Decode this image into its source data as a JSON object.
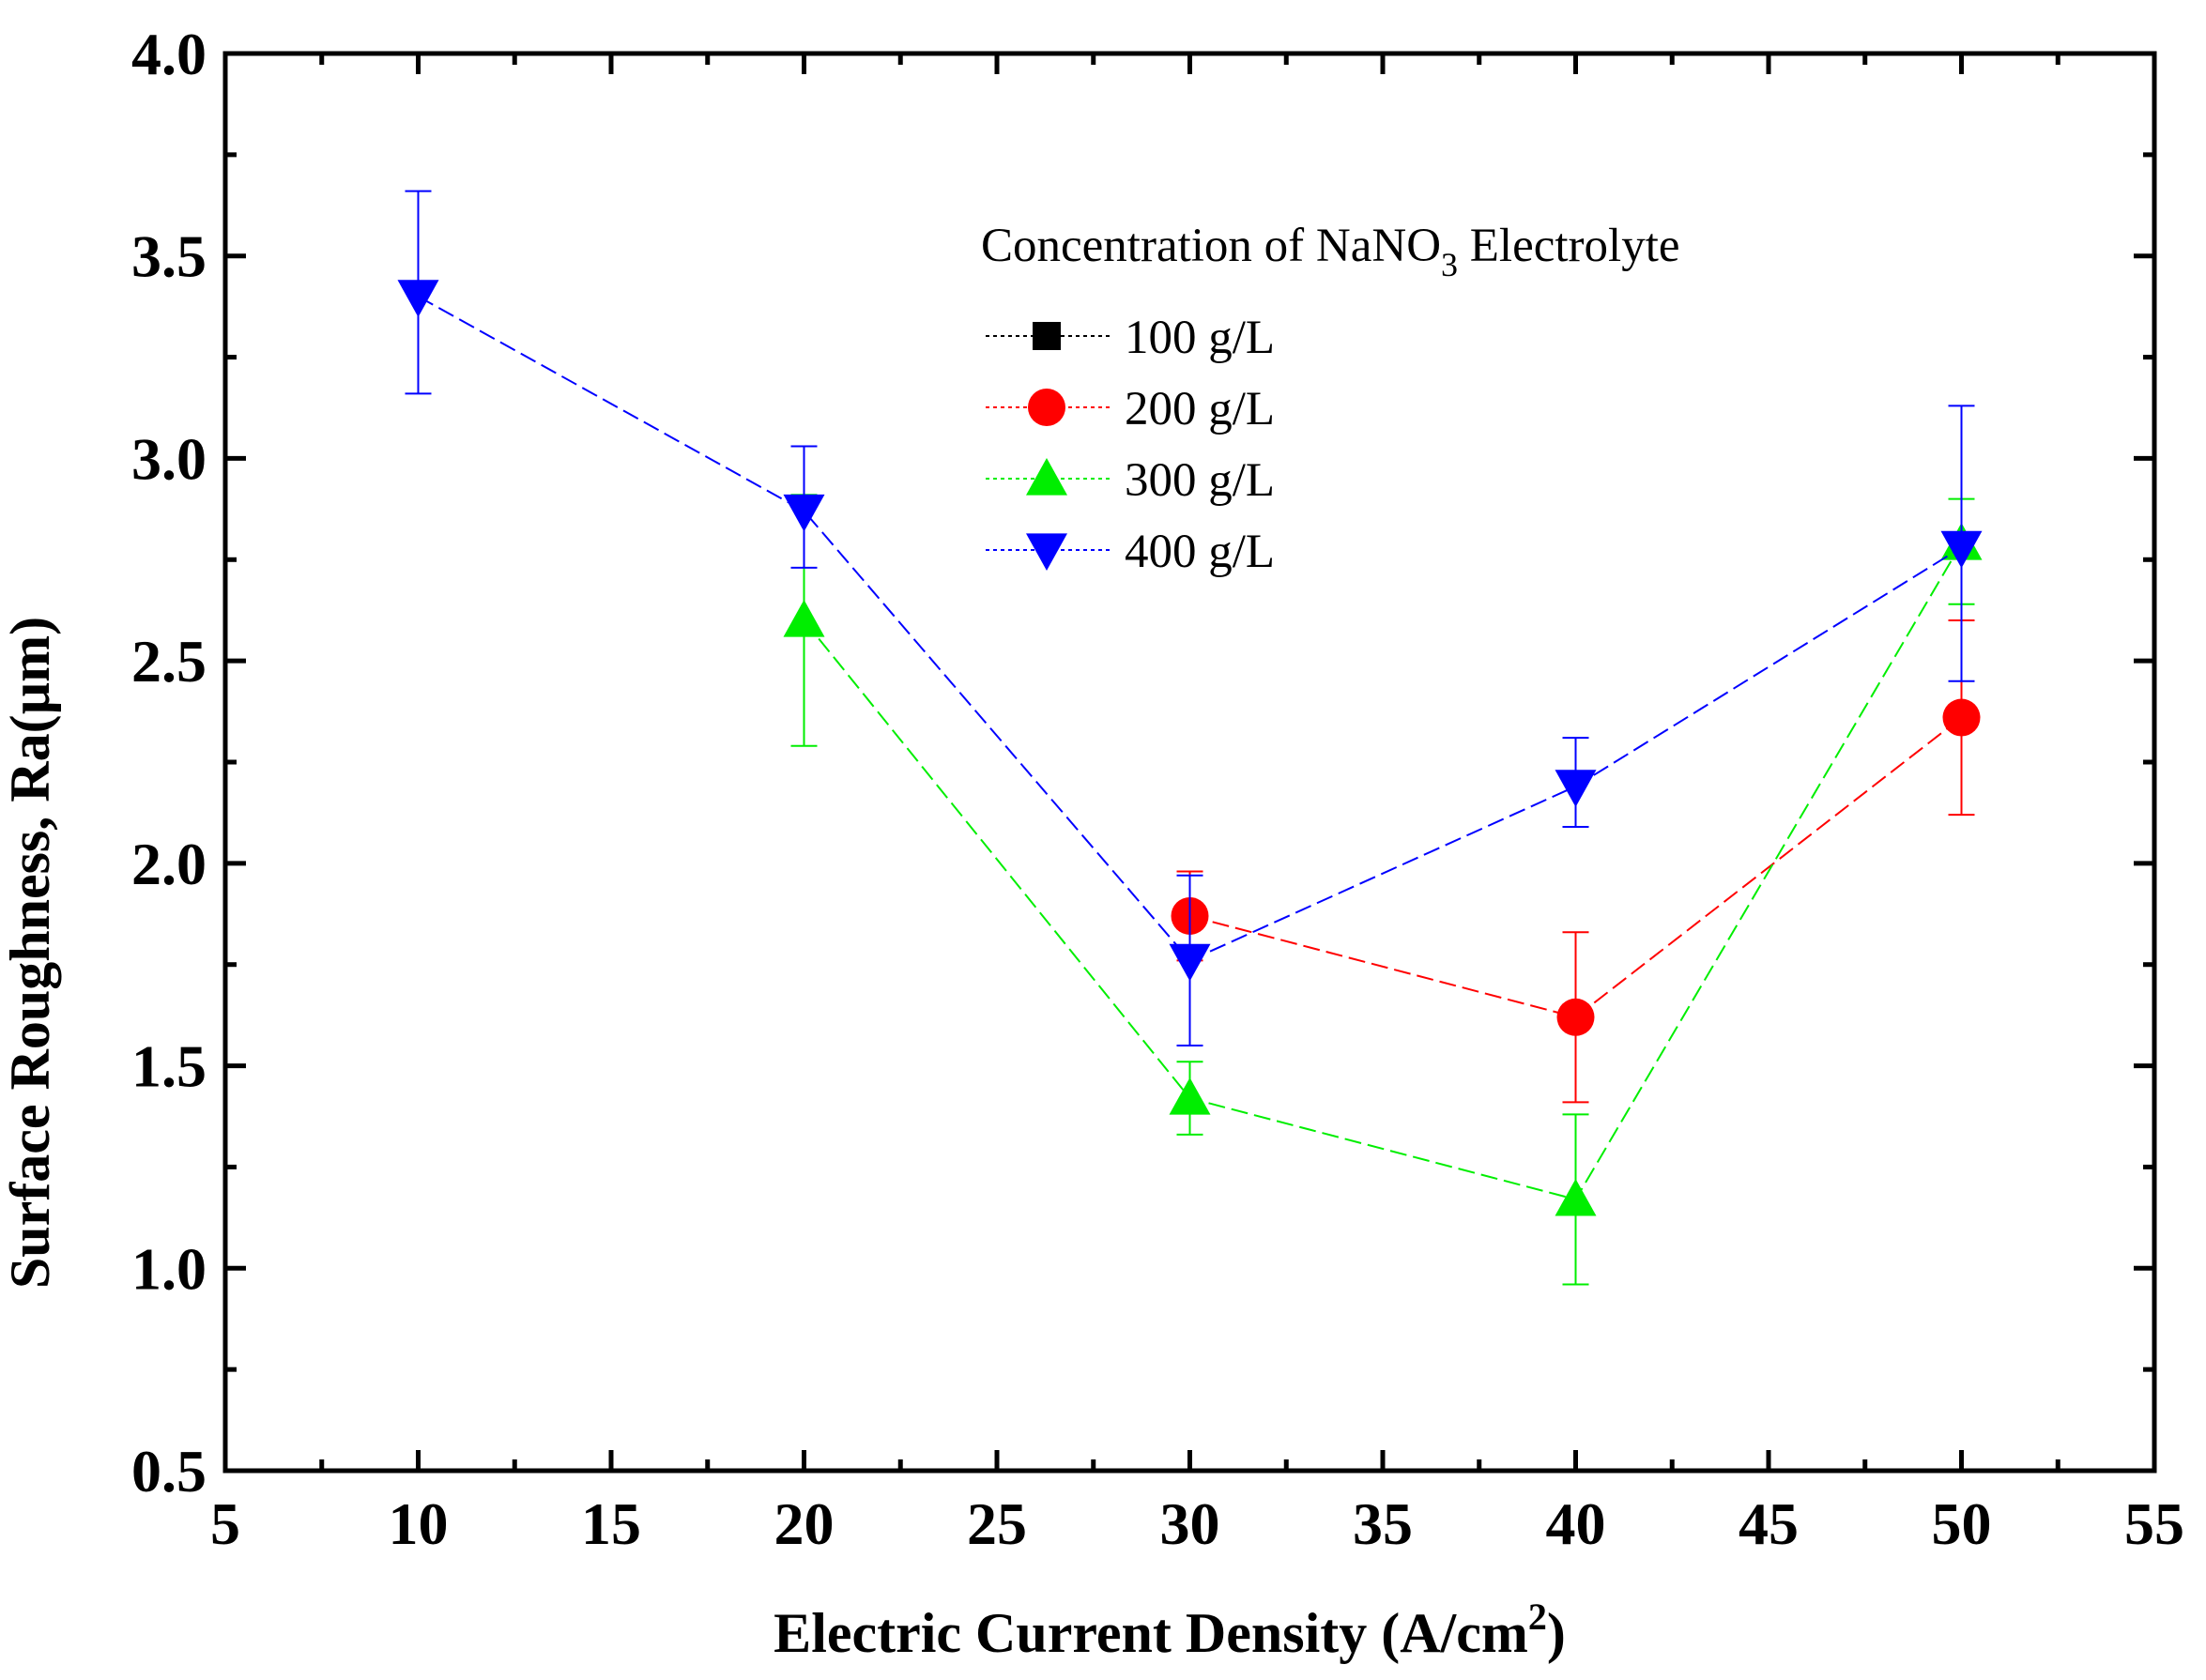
{
  "chart_data": {
    "type": "line",
    "xlabel": {
      "main": "Electric Current Density (A/cm",
      "sup": "2",
      "end": ")"
    },
    "ylabel": "Surface Roughness, Ra(µm)",
    "xlim": [
      5,
      55
    ],
    "ylim": [
      0.5,
      4.0
    ],
    "xticks": [
      5,
      10,
      15,
      20,
      25,
      30,
      35,
      40,
      45,
      50,
      55
    ],
    "yticks": [
      0.5,
      1.0,
      1.5,
      2.0,
      2.5,
      3.0,
      3.5,
      4.0
    ],
    "xtick_labels": [
      "5",
      "10",
      "15",
      "20",
      "25",
      "30",
      "35",
      "40",
      "45",
      "50",
      "55"
    ],
    "ytick_labels": [
      "0.5",
      "1.0",
      "1.5",
      "2.0",
      "2.5",
      "3.0",
      "3.5",
      "4.0"
    ],
    "grid": false,
    "legend": {
      "position": "top-center",
      "title": {
        "main": "Concentration of NaNO",
        "sub": "3",
        "end": " Electrolyte"
      }
    },
    "series": [
      {
        "name": "100 g/L",
        "color": "#000000",
        "marker": "square",
        "x": [],
        "y": [],
        "err_low": [],
        "err_high": []
      },
      {
        "name": "200 g/L",
        "color": "#ff0000",
        "marker": "circle",
        "x": [
          30,
          40,
          50
        ],
        "y": [
          1.87,
          1.62,
          2.36
        ],
        "err_low": [
          1.76,
          1.41,
          2.12
        ],
        "err_high": [
          1.98,
          1.83,
          2.6
        ]
      },
      {
        "name": "300 g/L",
        "color": "#00ee00",
        "marker": "triangle-up",
        "x": [
          20,
          30,
          40,
          50
        ],
        "y": [
          2.6,
          1.42,
          1.17,
          2.79
        ],
        "err_low": [
          2.29,
          1.33,
          0.96,
          2.64
        ],
        "err_high": [
          2.91,
          1.51,
          1.38,
          2.9
        ]
      },
      {
        "name": "400 g/L",
        "color": "#0000ff",
        "marker": "triangle-down",
        "x": [
          10,
          20,
          30,
          40,
          50
        ],
        "y": [
          3.4,
          2.87,
          1.76,
          2.19,
          2.78
        ],
        "err_low": [
          3.16,
          2.73,
          1.55,
          2.09,
          2.45
        ],
        "err_high": [
          3.66,
          3.03,
          1.97,
          2.31,
          3.13
        ]
      }
    ]
  }
}
